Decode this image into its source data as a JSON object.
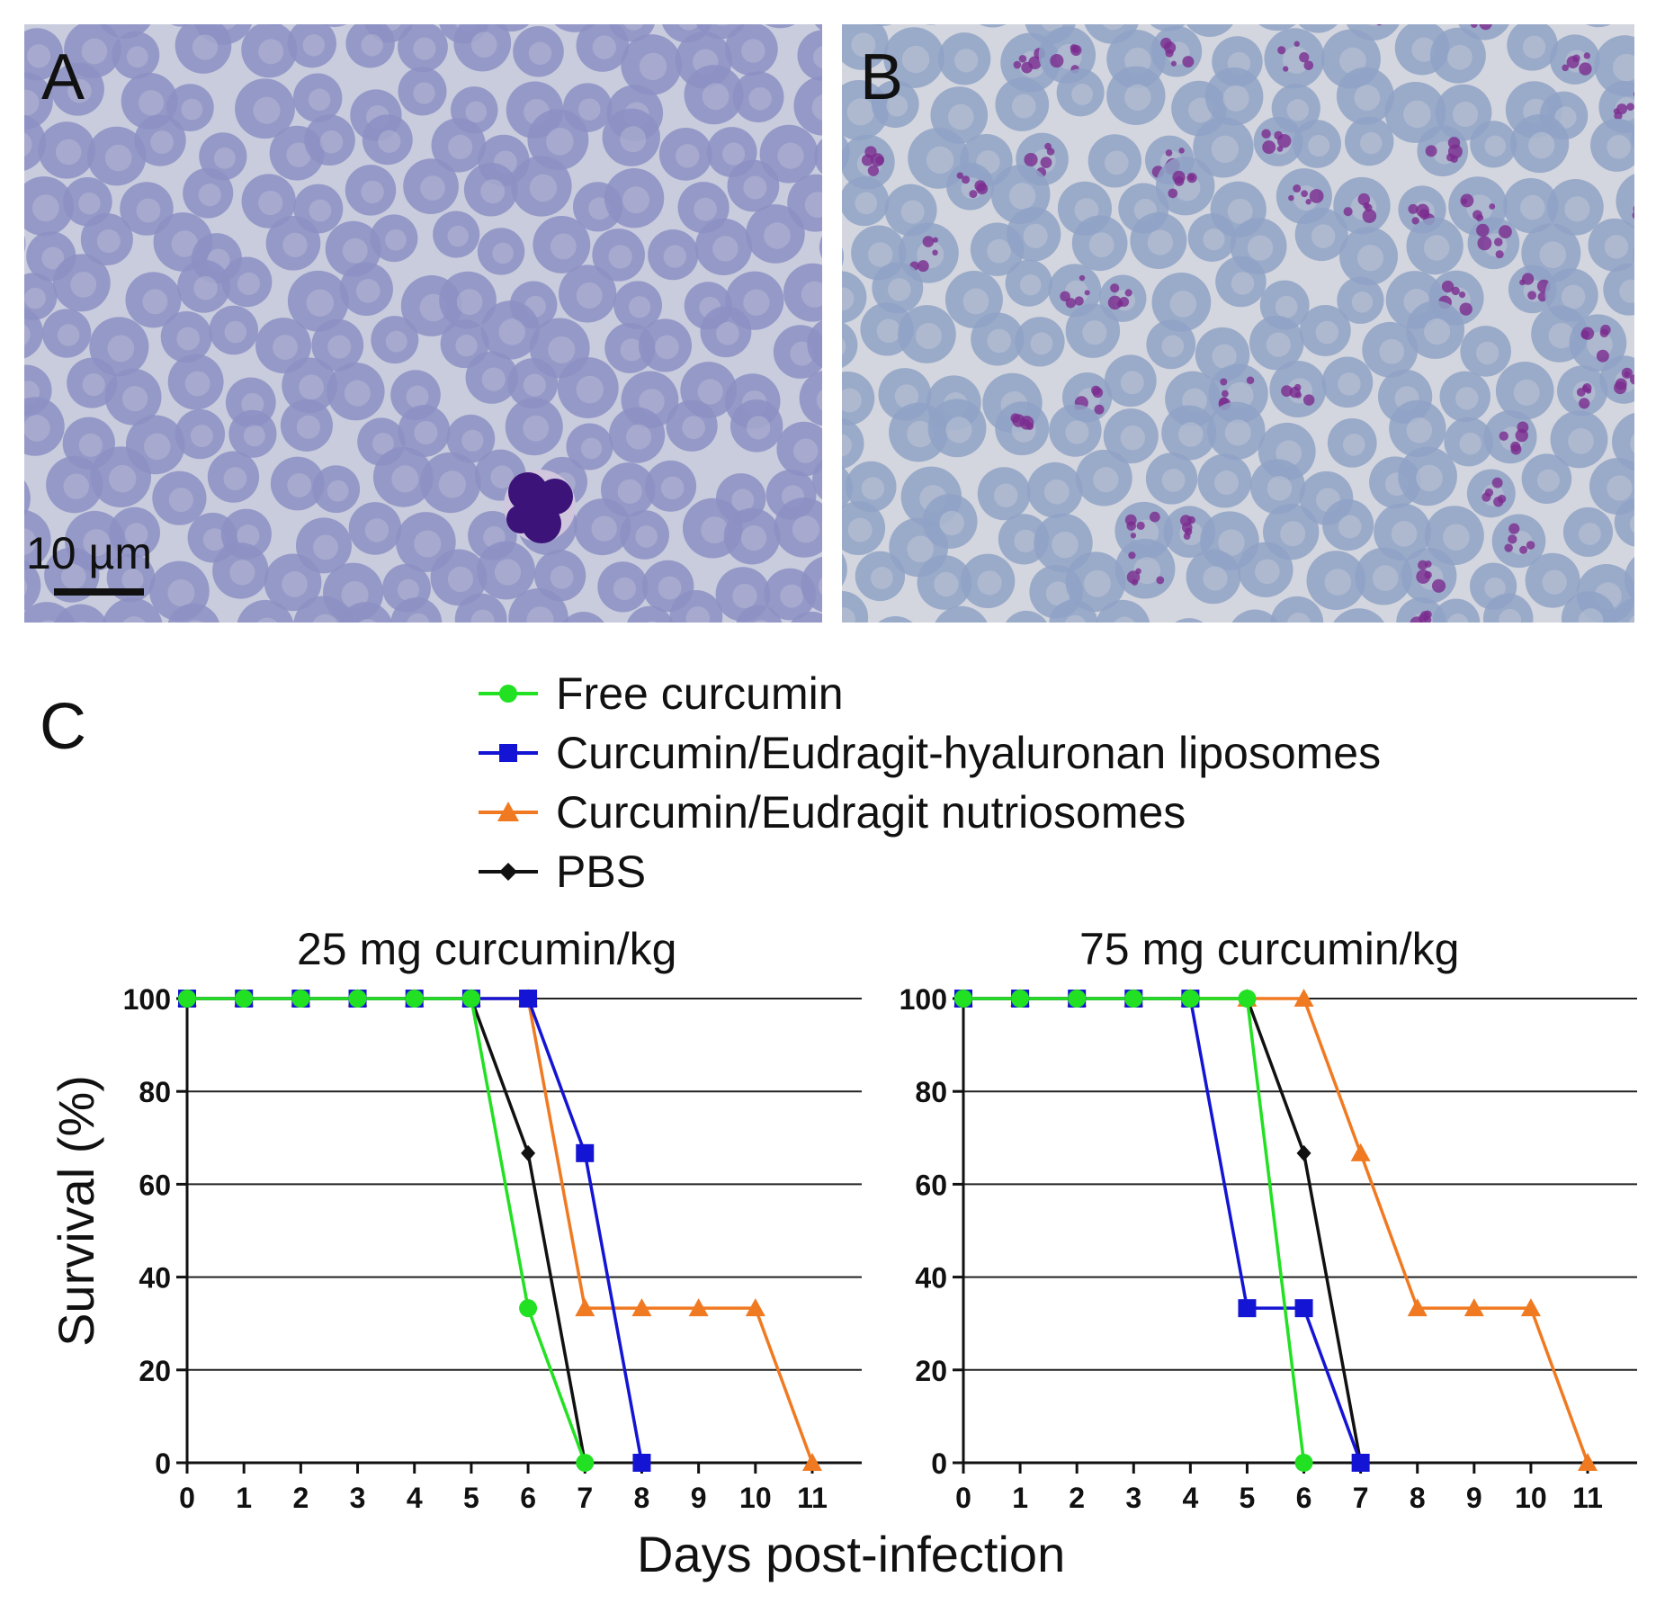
{
  "panels": {
    "a": {
      "letter": "A",
      "scale_bar_label": "10 µm"
    },
    "b": {
      "letter": "B"
    },
    "c": {
      "letter": "C"
    }
  },
  "colors": {
    "free": "#22e022",
    "liposomes": "#1414d4",
    "nutriosomes": "#f07a22",
    "pbs": "#111111",
    "smear_bg_a": "#c9ccdd",
    "cell_a": "#8c8fc3",
    "smear_bg_b": "#d3d6de",
    "cell_b": "#8fa2c6",
    "stain": "#7a2c8f"
  },
  "legend": {
    "items": [
      {
        "label": "Free curcumin",
        "series": "free",
        "marker": "circle"
      },
      {
        "label": "Curcumin/Eudragit-hyaluronan liposomes",
        "series": "liposomes",
        "marker": "square"
      },
      {
        "label": "Curcumin/Eudragit nutriosomes",
        "series": "nutriosomes",
        "marker": "triangle"
      },
      {
        "label": "PBS",
        "series": "pbs",
        "marker": "diamond"
      }
    ]
  },
  "axes": {
    "ylabel": "Survival (%)",
    "xlabel": "Days post-infection"
  },
  "chart_data": [
    {
      "type": "line",
      "title": "25 mg curcumin/kg",
      "xlim": [
        0,
        11
      ],
      "ylim": [
        0,
        100
      ],
      "xticks": [
        0,
        1,
        2,
        3,
        4,
        5,
        6,
        7,
        8,
        9,
        10,
        11
      ],
      "yticks": [
        0,
        20,
        40,
        60,
        80,
        100
      ],
      "grid": "horizontal",
      "series": [
        {
          "name": "PBS",
          "key": "pbs",
          "marker": "diamond",
          "x": [
            0,
            1,
            2,
            3,
            4,
            5,
            6,
            7
          ],
          "y": [
            100,
            100,
            100,
            100,
            100,
            100,
            66.7,
            0
          ]
        },
        {
          "name": "Curcumin/Eudragit nutriosomes",
          "key": "nutriosomes",
          "marker": "triangle",
          "x": [
            0,
            1,
            2,
            3,
            4,
            5,
            6,
            7,
            8,
            9,
            10,
            11
          ],
          "y": [
            100,
            100,
            100,
            100,
            100,
            100,
            100,
            33.3,
            33.3,
            33.3,
            33.3,
            0
          ]
        },
        {
          "name": "Curcumin/Eudragit-hyaluronan liposomes",
          "key": "liposomes",
          "marker": "square",
          "x": [
            0,
            1,
            2,
            3,
            4,
            5,
            6,
            7,
            8
          ],
          "y": [
            100,
            100,
            100,
            100,
            100,
            100,
            100,
            66.7,
            0
          ]
        },
        {
          "name": "Free curcumin",
          "key": "free",
          "marker": "circle",
          "x": [
            0,
            1,
            2,
            3,
            4,
            5,
            6,
            7
          ],
          "y": [
            100,
            100,
            100,
            100,
            100,
            100,
            33.3,
            0
          ]
        }
      ]
    },
    {
      "type": "line",
      "title": "75 mg curcumin/kg",
      "xlim": [
        0,
        11
      ],
      "ylim": [
        0,
        100
      ],
      "xticks": [
        0,
        1,
        2,
        3,
        4,
        5,
        6,
        7,
        8,
        9,
        10,
        11
      ],
      "yticks": [
        0,
        20,
        40,
        60,
        80,
        100
      ],
      "grid": "horizontal",
      "series": [
        {
          "name": "PBS",
          "key": "pbs",
          "marker": "diamond",
          "x": [
            0,
            1,
            2,
            3,
            4,
            5,
            6,
            7
          ],
          "y": [
            100,
            100,
            100,
            100,
            100,
            100,
            66.7,
            0
          ]
        },
        {
          "name": "Curcumin/Eudragit nutriosomes",
          "key": "nutriosomes",
          "marker": "triangle",
          "x": [
            0,
            1,
            2,
            3,
            4,
            5,
            6,
            7,
            8,
            9,
            10,
            11
          ],
          "y": [
            100,
            100,
            100,
            100,
            100,
            100,
            100,
            66.7,
            33.3,
            33.3,
            33.3,
            0
          ]
        },
        {
          "name": "Curcumin/Eudragit-hyaluronan liposomes",
          "key": "liposomes",
          "marker": "square",
          "x": [
            0,
            1,
            2,
            3,
            4,
            5,
            6,
            7
          ],
          "y": [
            100,
            100,
            100,
            100,
            100,
            33.3,
            33.3,
            0
          ]
        },
        {
          "name": "Free curcumin",
          "key": "free",
          "marker": "circle",
          "x": [
            0,
            1,
            2,
            3,
            4,
            5,
            6
          ],
          "y": [
            100,
            100,
            100,
            100,
            100,
            100,
            0
          ]
        }
      ]
    }
  ]
}
